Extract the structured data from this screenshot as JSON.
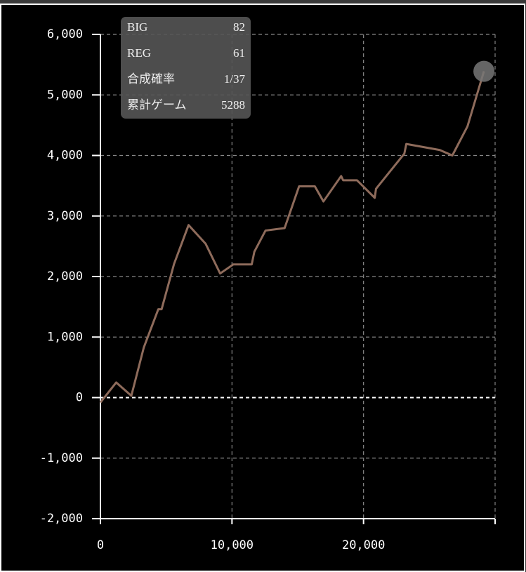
{
  "chart_data": {
    "type": "line",
    "x": [
      0,
      1200,
      2350,
      3300,
      4400,
      4650,
      5600,
      6700,
      8000,
      9100,
      10100,
      11500,
      11700,
      12550,
      14000,
      15100,
      16300,
      16950,
      18300,
      18450,
      19500,
      20850,
      20950,
      23100,
      23250,
      25800,
      26750,
      27900,
      29150
    ],
    "series": [
      {
        "name": null,
        "color": "#8e6b5b",
        "values": [
          -80,
          250,
          30,
          830,
          1460,
          1460,
          2210,
          2850,
          2540,
          2050,
          2200,
          2200,
          2410,
          2760,
          2800,
          3490,
          3490,
          3240,
          3660,
          3590,
          3590,
          3300,
          3450,
          4030,
          4190,
          4090,
          4000,
          4480,
          5390
        ]
      }
    ],
    "xlim": [
      0,
      30000
    ],
    "xticks": [
      0,
      {
        "value": 10000,
        "label": "10,000"
      },
      {
        "value": 20000,
        "label": "20,000"
      }
    ],
    "ylim": [
      -2000,
      6000
    ],
    "yticks": [
      {
        "value": -2000,
        "label": "-2,000"
      },
      {
        "value": -1000,
        "label": "-1,000"
      },
      0,
      {
        "value": 1000,
        "label": "1,000"
      },
      {
        "value": 2000,
        "label": "2,000"
      },
      {
        "value": 3000,
        "label": "3,000"
      },
      {
        "value": 4000,
        "label": "4,000"
      },
      {
        "value": 5000,
        "label": "5,000"
      },
      {
        "value": 6000,
        "label": "6,000"
      }
    ],
    "grid": true,
    "stats": [
      {
        "label": "BIG",
        "value": 82
      },
      {
        "label": "REG",
        "value": 61
      },
      {
        "label": "合成確率",
        "value": "1/37"
      },
      {
        "label": "累計ゲーム",
        "value": 5288
      }
    ]
  }
}
